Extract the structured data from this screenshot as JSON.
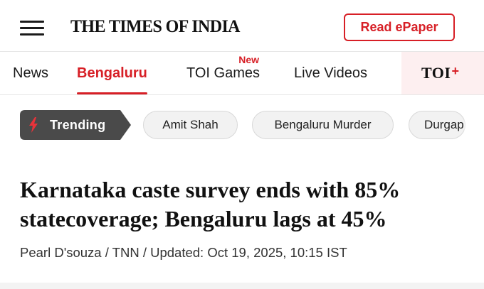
{
  "header": {
    "logo": "THE TIMES OF INDIA",
    "epaper_label": "Read ePaper"
  },
  "nav": {
    "items": [
      {
        "label": "News"
      },
      {
        "label": "Bengaluru",
        "active": true
      },
      {
        "label": "TOI Games",
        "badge": "New"
      },
      {
        "label": "Live Videos"
      }
    ],
    "toi_plus": {
      "text": "TOI",
      "symbol": "+"
    }
  },
  "trending": {
    "label": "Trending",
    "chips": [
      "Amit Shah",
      "Bengaluru Murder",
      "Durgap"
    ]
  },
  "article": {
    "headline": "Karnataka caste survey ends with 85% statecoverage; Bengaluru lags at 45%",
    "byline": "Pearl D'souza / TNN / Updated: Oct 19, 2025, 10:15 IST"
  },
  "colors": {
    "brand_red": "#d71f26",
    "trending_bg": "#4a4a4a",
    "chip_bg": "#f2f2f2",
    "toi_plus_bg": "#fdeff0"
  },
  "icons": {
    "menu": "hamburger-icon",
    "trending": "lightning-bolt-icon"
  }
}
